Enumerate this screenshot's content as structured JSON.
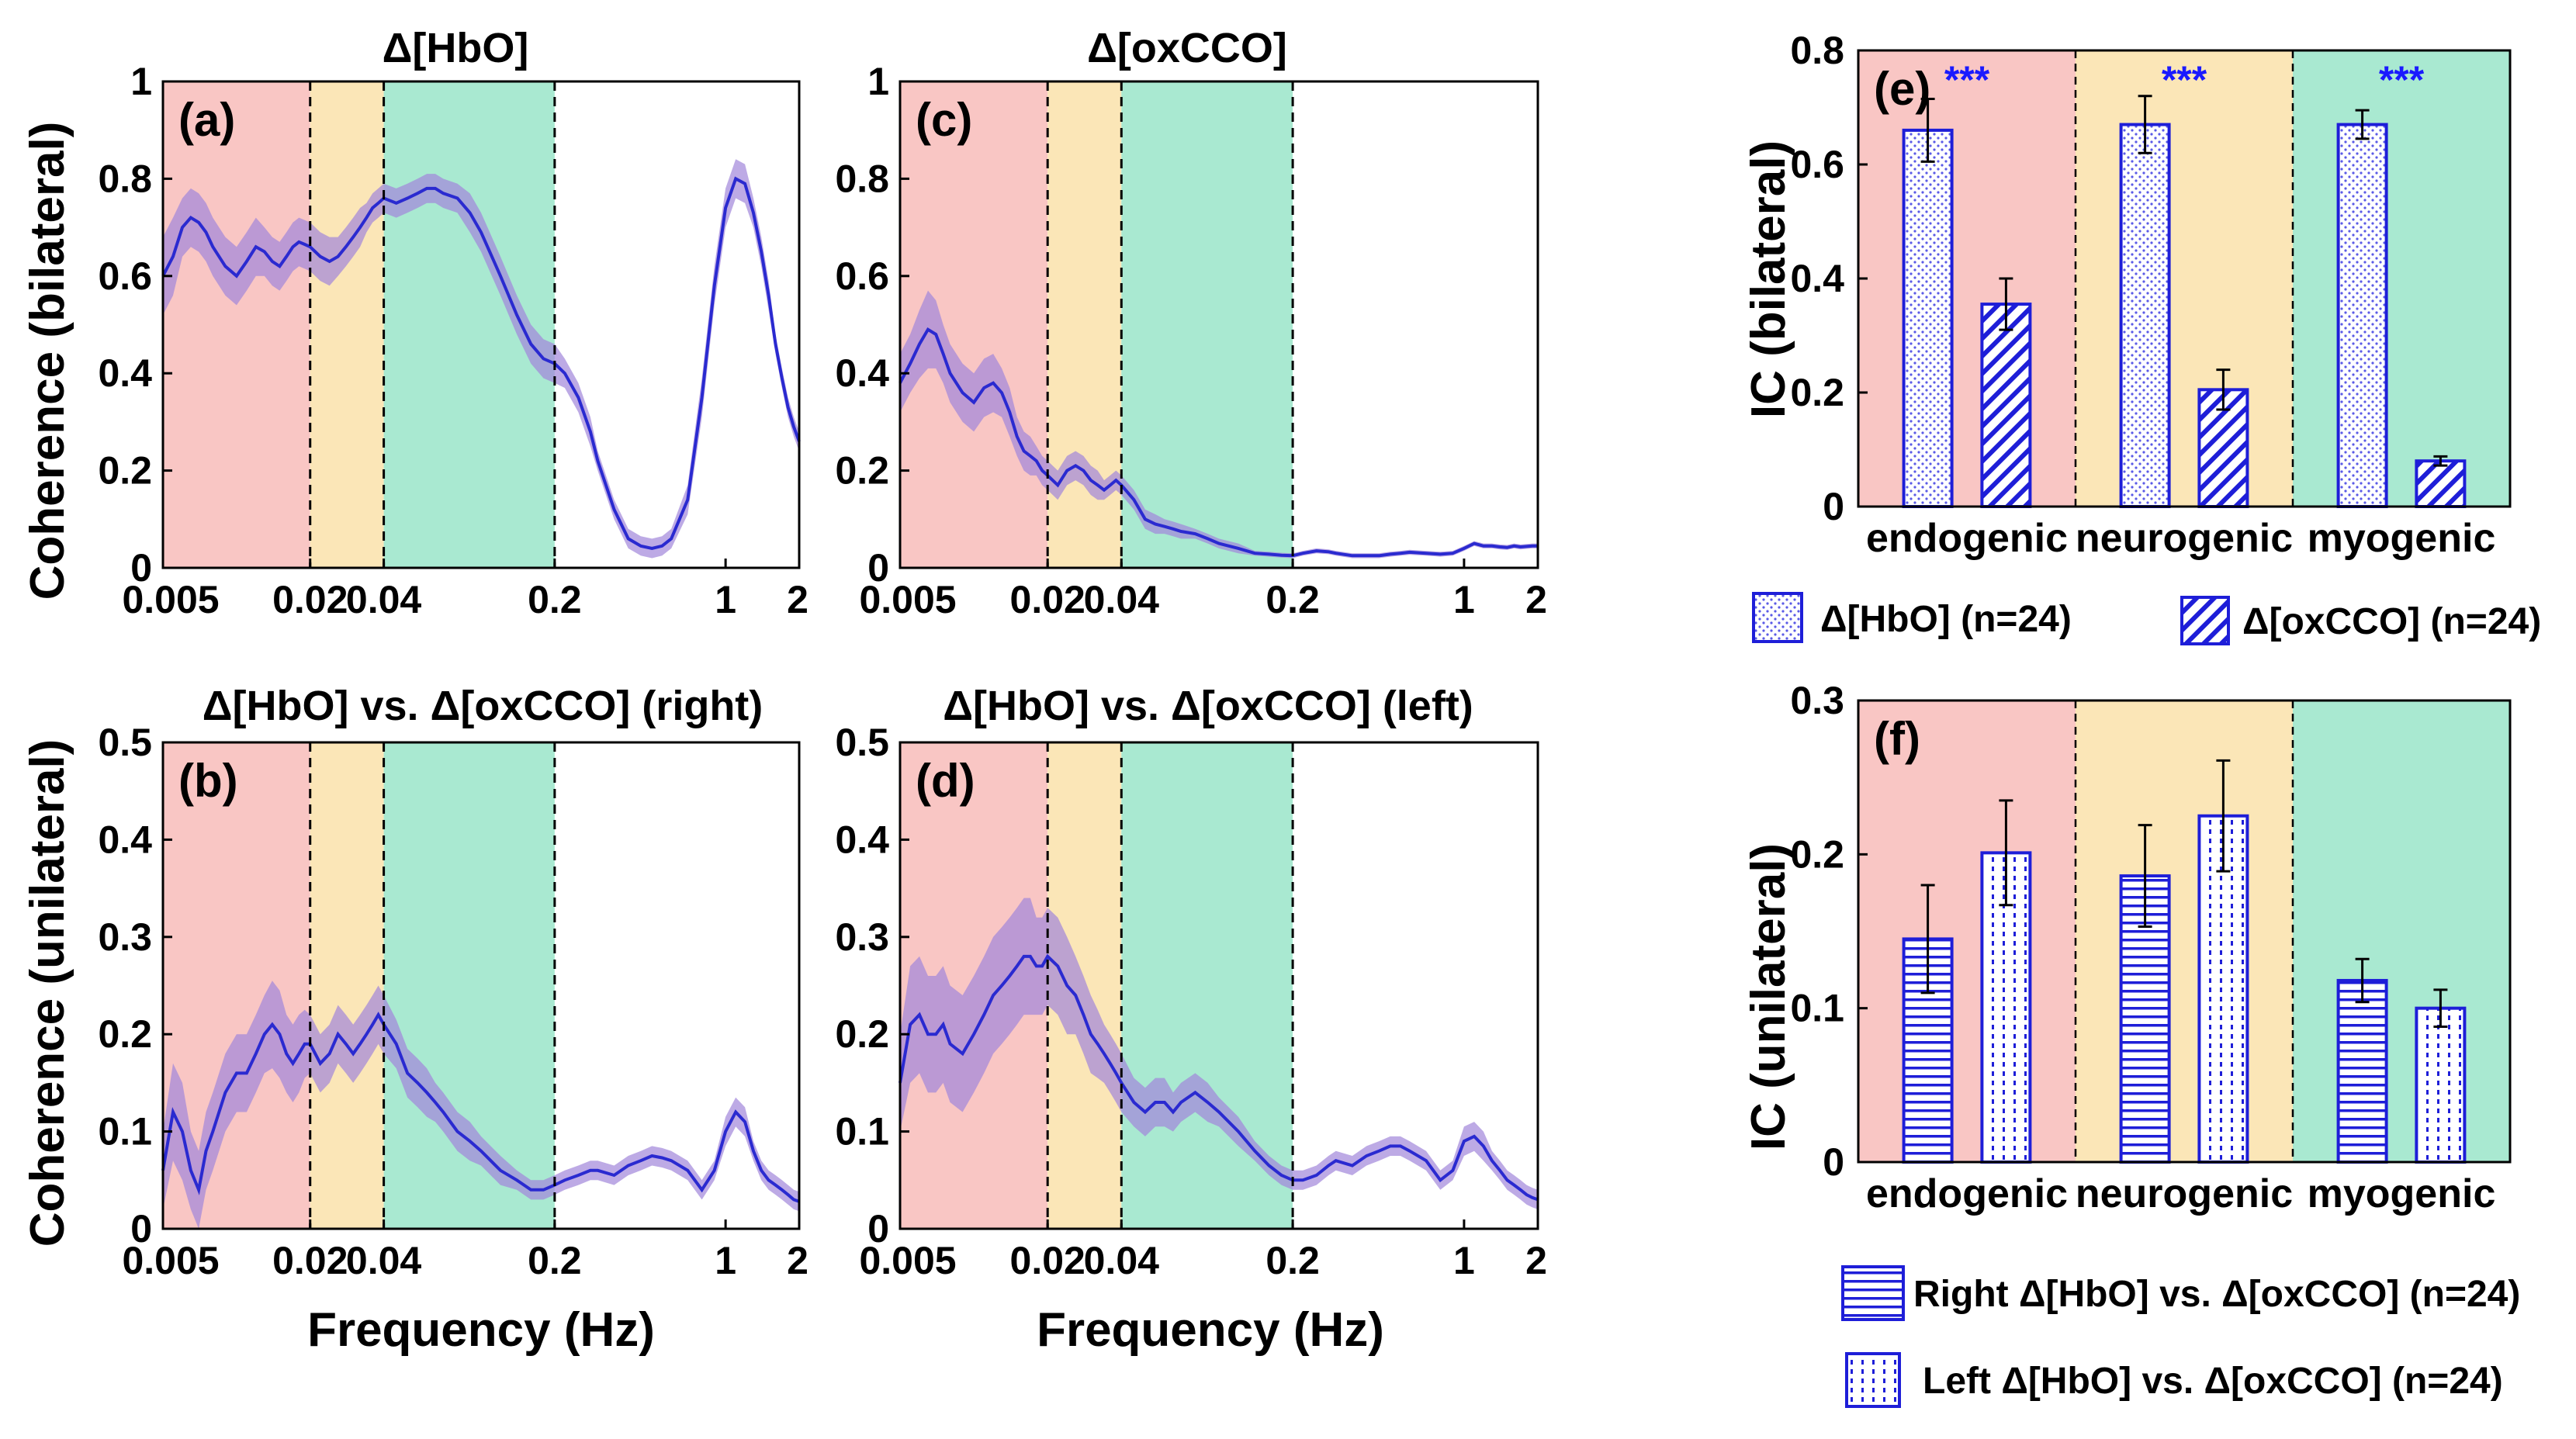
{
  "colors": {
    "endogenic": "#f9c6c4",
    "neurogenic": "#fbe6b7",
    "myogenic": "#a9e9d1",
    "line": "#2a2ad0",
    "band": "#c45bc4",
    "band_light": "#9898e4",
    "star": "#1a1aff"
  },
  "line_panels": [
    {
      "id": "a",
      "label": "(a)",
      "title": "Δ[HbO]",
      "ylabel": "Coherence (bilateral)",
      "xlabel": "",
      "ylim": [
        0,
        1
      ],
      "yticks": [
        "0",
        "0.2",
        "0.4",
        "0.6",
        "0.8",
        "1"
      ],
      "xticks": [
        "0.005",
        "0.02",
        "0.04",
        "0.2",
        "1",
        "2"
      ],
      "shade_to": "0.2",
      "x": [
        0.005,
        0.0055,
        0.006,
        0.0065,
        0.007,
        0.0075,
        0.008,
        0.009,
        0.01,
        0.011,
        0.012,
        0.013,
        0.014,
        0.015,
        0.016,
        0.017,
        0.018,
        0.019,
        0.02,
        0.022,
        0.024,
        0.026,
        0.028,
        0.03,
        0.032,
        0.034,
        0.036,
        0.038,
        0.04,
        0.045,
        0.05,
        0.055,
        0.06,
        0.065,
        0.07,
        0.08,
        0.09,
        0.1,
        0.12,
        0.14,
        0.16,
        0.18,
        0.2,
        0.22,
        0.25,
        0.28,
        0.3,
        0.35,
        0.4,
        0.45,
        0.5,
        0.55,
        0.6,
        0.7,
        0.8,
        0.9,
        1.0,
        1.1,
        1.2,
        1.3,
        1.4,
        1.5,
        1.6,
        1.7,
        1.8,
        1.9,
        2.0
      ],
      "y": [
        0.6,
        0.64,
        0.7,
        0.72,
        0.71,
        0.69,
        0.66,
        0.62,
        0.6,
        0.63,
        0.66,
        0.65,
        0.63,
        0.62,
        0.64,
        0.66,
        0.67,
        0.665,
        0.66,
        0.64,
        0.63,
        0.64,
        0.66,
        0.68,
        0.7,
        0.72,
        0.74,
        0.75,
        0.76,
        0.75,
        0.76,
        0.77,
        0.78,
        0.78,
        0.77,
        0.76,
        0.73,
        0.69,
        0.6,
        0.52,
        0.46,
        0.43,
        0.42,
        0.4,
        0.35,
        0.28,
        0.22,
        0.12,
        0.06,
        0.045,
        0.04,
        0.045,
        0.06,
        0.14,
        0.35,
        0.58,
        0.74,
        0.8,
        0.79,
        0.73,
        0.65,
        0.56,
        0.46,
        0.39,
        0.33,
        0.29,
        0.26
      ],
      "err": [
        0.08,
        0.08,
        0.06,
        0.06,
        0.06,
        0.06,
        0.06,
        0.06,
        0.06,
        0.06,
        0.06,
        0.05,
        0.05,
        0.05,
        0.05,
        0.05,
        0.05,
        0.05,
        0.05,
        0.05,
        0.05,
        0.04,
        0.04,
        0.04,
        0.04,
        0.03,
        0.03,
        0.03,
        0.03,
        0.03,
        0.03,
        0.03,
        0.03,
        0.03,
        0.03,
        0.03,
        0.04,
        0.04,
        0.04,
        0.04,
        0.04,
        0.04,
        0.04,
        0.03,
        0.03,
        0.03,
        0.02,
        0.02,
        0.02,
        0.02,
        0.02,
        0.02,
        0.02,
        0.03,
        0.04,
        0.04,
        0.04,
        0.04,
        0.04,
        0.03,
        0.03,
        0.03,
        0.02,
        0.02,
        0.02,
        0.02,
        0.02
      ]
    },
    {
      "id": "b",
      "label": "(b)",
      "title": "Δ[HbO] vs. Δ[oxCCO] (right)",
      "ylabel": "Coherence (unilateral)",
      "xlabel": "Frequency (Hz)",
      "ylim": [
        0,
        0.5
      ],
      "yticks": [
        "0",
        "0.1",
        "0.2",
        "0.3",
        "0.4",
        "0.5"
      ],
      "xticks": [
        "0.005",
        "0.02",
        "0.04",
        "0.2",
        "1",
        "2"
      ],
      "shade_to": "0.2",
      "x": [
        0.005,
        0.0055,
        0.006,
        0.0065,
        0.007,
        0.0075,
        0.008,
        0.009,
        0.01,
        0.011,
        0.012,
        0.013,
        0.014,
        0.015,
        0.016,
        0.017,
        0.018,
        0.019,
        0.02,
        0.022,
        0.024,
        0.026,
        0.028,
        0.03,
        0.032,
        0.034,
        0.036,
        0.038,
        0.04,
        0.045,
        0.05,
        0.055,
        0.06,
        0.065,
        0.07,
        0.08,
        0.09,
        0.1,
        0.12,
        0.14,
        0.16,
        0.18,
        0.2,
        0.22,
        0.25,
        0.28,
        0.3,
        0.35,
        0.4,
        0.45,
        0.5,
        0.55,
        0.6,
        0.7,
        0.8,
        0.9,
        1.0,
        1.1,
        1.2,
        1.3,
        1.4,
        1.5,
        1.6,
        1.7,
        1.8,
        1.9,
        2.0
      ],
      "y": [
        0.06,
        0.12,
        0.1,
        0.06,
        0.04,
        0.08,
        0.1,
        0.14,
        0.16,
        0.16,
        0.18,
        0.2,
        0.21,
        0.2,
        0.18,
        0.17,
        0.18,
        0.19,
        0.19,
        0.17,
        0.18,
        0.2,
        0.19,
        0.18,
        0.19,
        0.2,
        0.21,
        0.22,
        0.21,
        0.19,
        0.16,
        0.15,
        0.14,
        0.13,
        0.12,
        0.1,
        0.09,
        0.08,
        0.06,
        0.05,
        0.04,
        0.04,
        0.045,
        0.05,
        0.055,
        0.06,
        0.06,
        0.055,
        0.065,
        0.07,
        0.075,
        0.073,
        0.07,
        0.06,
        0.04,
        0.06,
        0.1,
        0.12,
        0.11,
        0.08,
        0.06,
        0.05,
        0.045,
        0.04,
        0.035,
        0.03,
        0.028
      ],
      "err": [
        0.04,
        0.05,
        0.05,
        0.04,
        0.04,
        0.04,
        0.04,
        0.04,
        0.04,
        0.04,
        0.04,
        0.04,
        0.045,
        0.045,
        0.04,
        0.04,
        0.04,
        0.035,
        0.03,
        0.03,
        0.03,
        0.03,
        0.03,
        0.03,
        0.03,
        0.03,
        0.03,
        0.03,
        0.03,
        0.025,
        0.025,
        0.025,
        0.025,
        0.02,
        0.02,
        0.02,
        0.02,
        0.015,
        0.015,
        0.01,
        0.01,
        0.01,
        0.01,
        0.01,
        0.01,
        0.01,
        0.01,
        0.01,
        0.01,
        0.01,
        0.01,
        0.01,
        0.01,
        0.01,
        0.01,
        0.01,
        0.015,
        0.015,
        0.015,
        0.01,
        0.01,
        0.01,
        0.01,
        0.01,
        0.01,
        0.01,
        0.01
      ]
    },
    {
      "id": "c",
      "label": "(c)",
      "title": "Δ[oxCCO]",
      "ylabel": "",
      "xlabel": "",
      "ylim": [
        0,
        1
      ],
      "yticks": [
        "0",
        "0.2",
        "0.4",
        "0.6",
        "0.8",
        "1"
      ],
      "xticks": [
        "0.005",
        "0.02",
        "0.04",
        "0.2",
        "1",
        "2"
      ],
      "shade_to": "0.2",
      "x": [
        0.005,
        0.0055,
        0.006,
        0.0065,
        0.007,
        0.0075,
        0.008,
        0.009,
        0.01,
        0.011,
        0.012,
        0.013,
        0.014,
        0.015,
        0.016,
        0.017,
        0.018,
        0.019,
        0.02,
        0.022,
        0.024,
        0.026,
        0.028,
        0.03,
        0.032,
        0.034,
        0.036,
        0.038,
        0.04,
        0.045,
        0.05,
        0.055,
        0.06,
        0.065,
        0.07,
        0.08,
        0.09,
        0.1,
        0.12,
        0.14,
        0.16,
        0.18,
        0.2,
        0.22,
        0.25,
        0.28,
        0.3,
        0.35,
        0.4,
        0.45,
        0.5,
        0.55,
        0.6,
        0.7,
        0.8,
        0.9,
        1.0,
        1.1,
        1.2,
        1.3,
        1.4,
        1.5,
        1.6,
        1.7,
        1.8,
        1.9,
        2.0
      ],
      "y": [
        0.38,
        0.42,
        0.46,
        0.49,
        0.48,
        0.44,
        0.4,
        0.36,
        0.34,
        0.37,
        0.38,
        0.36,
        0.32,
        0.27,
        0.24,
        0.23,
        0.22,
        0.2,
        0.19,
        0.17,
        0.2,
        0.21,
        0.2,
        0.18,
        0.17,
        0.16,
        0.17,
        0.18,
        0.17,
        0.14,
        0.1,
        0.09,
        0.085,
        0.08,
        0.075,
        0.07,
        0.06,
        0.05,
        0.04,
        0.03,
        0.028,
        0.026,
        0.025,
        0.03,
        0.035,
        0.033,
        0.03,
        0.025,
        0.025,
        0.025,
        0.028,
        0.03,
        0.032,
        0.03,
        0.028,
        0.03,
        0.04,
        0.05,
        0.045,
        0.045,
        0.043,
        0.042,
        0.045,
        0.043,
        0.044,
        0.045,
        0.045
      ],
      "err": [
        0.06,
        0.06,
        0.07,
        0.08,
        0.07,
        0.06,
        0.06,
        0.06,
        0.06,
        0.06,
        0.06,
        0.05,
        0.05,
        0.04,
        0.04,
        0.04,
        0.03,
        0.03,
        0.03,
        0.03,
        0.03,
        0.03,
        0.03,
        0.03,
        0.03,
        0.02,
        0.02,
        0.02,
        0.02,
        0.02,
        0.02,
        0.02,
        0.015,
        0.015,
        0.015,
        0.01,
        0.01,
        0.01,
        0.01,
        0.005,
        0.005,
        0.005,
        0.005,
        0.005,
        0.005,
        0.005,
        0.005,
        0.005,
        0.005,
        0.005,
        0.005,
        0.005,
        0.005,
        0.005,
        0.005,
        0.005,
        0.005,
        0.005,
        0.005,
        0.005,
        0.005,
        0.005,
        0.005,
        0.005,
        0.005,
        0.005,
        0.005
      ]
    },
    {
      "id": "d",
      "label": "(d)",
      "title": "Δ[HbO] vs. Δ[oxCCO] (left)",
      "ylabel": "",
      "xlabel": "Frequency (Hz)",
      "ylim": [
        0,
        0.5
      ],
      "yticks": [
        "0",
        "0.1",
        "0.2",
        "0.3",
        "0.4",
        "0.5"
      ],
      "xticks": [
        "0.005",
        "0.02",
        "0.04",
        "0.2",
        "1",
        "2"
      ],
      "shade_to": "0.2",
      "x": [
        0.005,
        0.0055,
        0.006,
        0.0065,
        0.007,
        0.0075,
        0.008,
        0.009,
        0.01,
        0.011,
        0.012,
        0.013,
        0.014,
        0.015,
        0.016,
        0.017,
        0.018,
        0.019,
        0.02,
        0.022,
        0.024,
        0.026,
        0.028,
        0.03,
        0.032,
        0.034,
        0.036,
        0.038,
        0.04,
        0.045,
        0.05,
        0.055,
        0.06,
        0.065,
        0.07,
        0.08,
        0.09,
        0.1,
        0.12,
        0.14,
        0.16,
        0.18,
        0.2,
        0.22,
        0.25,
        0.28,
        0.3,
        0.35,
        0.4,
        0.45,
        0.5,
        0.55,
        0.6,
        0.7,
        0.8,
        0.9,
        1.0,
        1.1,
        1.2,
        1.3,
        1.4,
        1.5,
        1.6,
        1.7,
        1.8,
        1.9,
        2.0
      ],
      "y": [
        0.15,
        0.21,
        0.22,
        0.2,
        0.2,
        0.21,
        0.19,
        0.18,
        0.2,
        0.22,
        0.24,
        0.25,
        0.26,
        0.27,
        0.28,
        0.28,
        0.27,
        0.27,
        0.28,
        0.27,
        0.25,
        0.24,
        0.22,
        0.2,
        0.19,
        0.18,
        0.17,
        0.16,
        0.15,
        0.13,
        0.12,
        0.13,
        0.13,
        0.12,
        0.13,
        0.14,
        0.13,
        0.12,
        0.1,
        0.08,
        0.065,
        0.055,
        0.05,
        0.05,
        0.055,
        0.065,
        0.07,
        0.065,
        0.075,
        0.08,
        0.085,
        0.085,
        0.08,
        0.07,
        0.05,
        0.06,
        0.09,
        0.095,
        0.085,
        0.07,
        0.06,
        0.05,
        0.045,
        0.04,
        0.035,
        0.032,
        0.03
      ],
      "err": [
        0.05,
        0.06,
        0.06,
        0.06,
        0.06,
        0.06,
        0.06,
        0.06,
        0.06,
        0.06,
        0.06,
        0.06,
        0.06,
        0.06,
        0.06,
        0.06,
        0.05,
        0.05,
        0.05,
        0.05,
        0.05,
        0.04,
        0.04,
        0.04,
        0.035,
        0.03,
        0.03,
        0.03,
        0.03,
        0.025,
        0.025,
        0.025,
        0.025,
        0.02,
        0.02,
        0.02,
        0.02,
        0.015,
        0.015,
        0.01,
        0.01,
        0.01,
        0.01,
        0.01,
        0.01,
        0.01,
        0.01,
        0.01,
        0.01,
        0.01,
        0.01,
        0.01,
        0.01,
        0.01,
        0.01,
        0.01,
        0.015,
        0.015,
        0.015,
        0.01,
        0.01,
        0.01,
        0.01,
        0.01,
        0.01,
        0.01,
        0.01
      ]
    }
  ],
  "chart_data": [
    {
      "panel": "(e)",
      "type": "bar",
      "ylabel": "IC (bilateral)",
      "ylim": [
        0,
        0.8
      ],
      "yticks": [
        "0",
        "0.2",
        "0.4",
        "0.6",
        "0.8"
      ],
      "categories": [
        "endogenic",
        "neurogenic",
        "myogenic"
      ],
      "series": [
        {
          "name": "Δ[HbO] (n=24)",
          "pattern": "dots",
          "values": [
            0.66,
            0.67,
            0.67
          ],
          "errors": [
            0.055,
            0.05,
            0.025
          ]
        },
        {
          "name": "Δ[oxCCO] (n=24)",
          "pattern": "diag",
          "values": [
            0.355,
            0.205,
            0.08
          ],
          "errors": [
            0.045,
            0.035,
            0.008
          ]
        }
      ],
      "significance": [
        "***",
        "***",
        "***"
      ]
    },
    {
      "panel": "(f)",
      "type": "bar",
      "ylabel": "IC (unilateral)",
      "ylim": [
        0,
        0.3
      ],
      "yticks": [
        "0",
        "0.1",
        "0.2",
        "0.3"
      ],
      "categories": [
        "endogenic",
        "neurogenic",
        "myogenic"
      ],
      "series": [
        {
          "name": "Right Δ[HbO] vs. Δ[oxCCO] (n=24)",
          "pattern": "hlines",
          "values": [
            0.145,
            0.186,
            0.118
          ],
          "errors": [
            0.035,
            0.033,
            0.014
          ]
        },
        {
          "name": "Left Δ[HbO] vs. Δ[oxCCO] (n=24)",
          "pattern": "vdots",
          "values": [
            0.201,
            0.225,
            0.1
          ],
          "errors": [
            0.034,
            0.036,
            0.012
          ]
        }
      ],
      "significance": []
    }
  ]
}
